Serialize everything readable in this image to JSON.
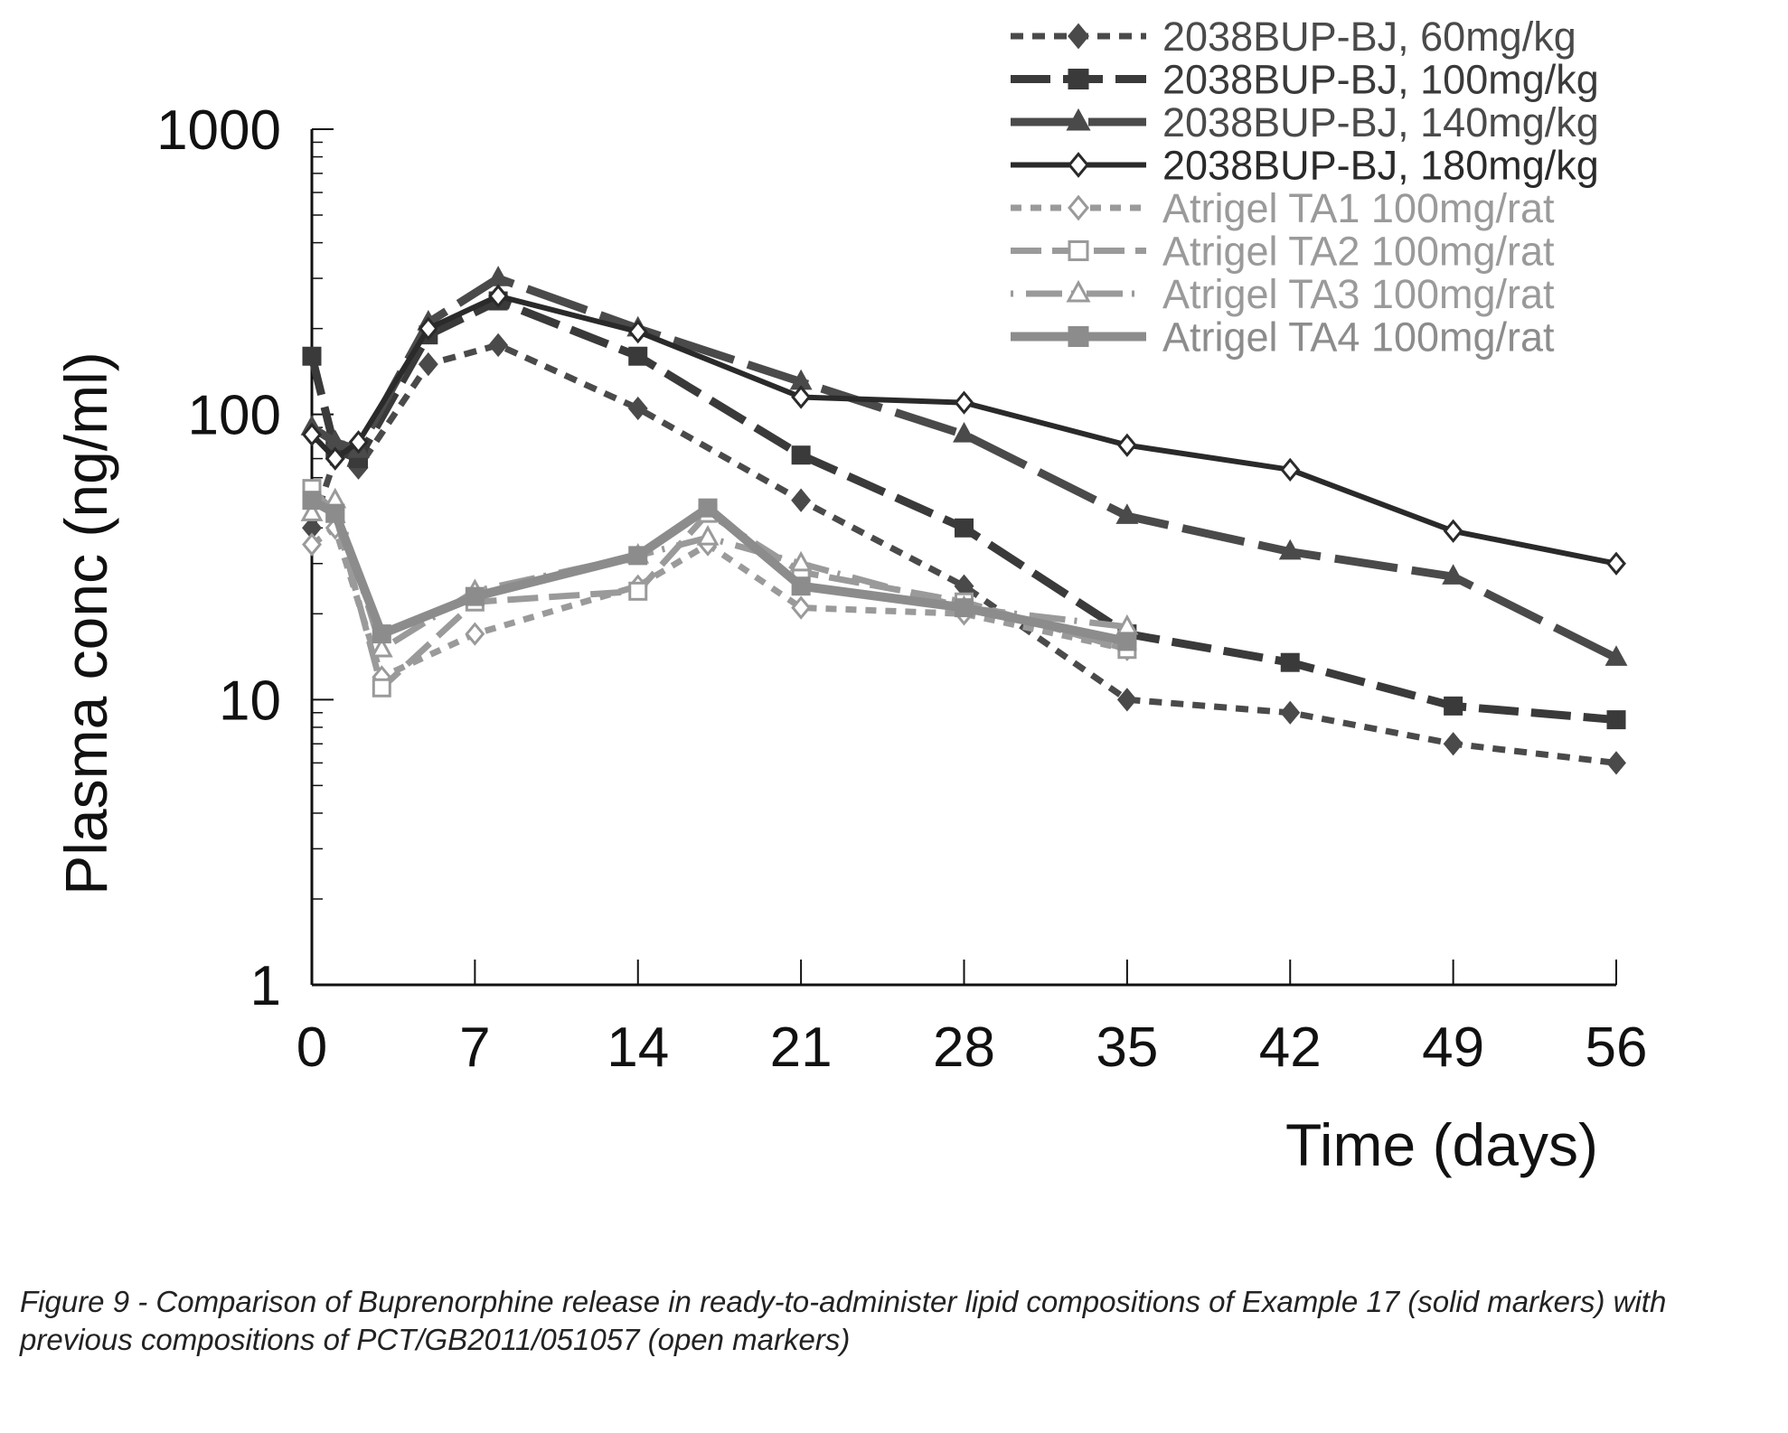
{
  "caption": "Figure 9 - Comparison  of Buprenorphine release in ready-to-administer lipid compositions of Example 17 (solid markers) with previous compositions of PCT/GB2011/051057 (open markers)",
  "chart_data": {
    "type": "line",
    "title": "",
    "xlabel": "Time (days)",
    "ylabel": "Plasma conc (ng/ml)",
    "xlim": [
      0,
      56
    ],
    "ylim": [
      1,
      1000
    ],
    "yscale": "log",
    "xticks": [
      0,
      7,
      14,
      21,
      28,
      35,
      42,
      49,
      56
    ],
    "yticks": [
      1,
      10,
      100,
      1000
    ],
    "grid": false,
    "legend_position": "top-right",
    "series": [
      {
        "name": "2038BUP-BJ, 60mg/kg",
        "color": "#4a4a4a",
        "dash": "14 10",
        "width": 7,
        "marker": "diamond",
        "filled": true,
        "x": [
          0,
          1,
          2,
          5,
          8,
          14,
          21,
          28,
          35,
          42,
          49,
          56
        ],
        "y": [
          40,
          70,
          65,
          150,
          175,
          105,
          50,
          25,
          10,
          9,
          7,
          6
        ]
      },
      {
        "name": "2038BUP-BJ, 100mg/kg",
        "color": "#3a3a3a",
        "dash": "44 14",
        "width": 9,
        "marker": "square",
        "filled": true,
        "x": [
          0,
          1,
          2,
          5,
          8,
          14,
          21,
          28,
          35,
          42,
          49,
          56
        ],
        "y": [
          160,
          75,
          70,
          190,
          250,
          160,
          72,
          40,
          17,
          13.5,
          9.5,
          8.5
        ]
      },
      {
        "name": "2038BUP-BJ, 140mg/kg",
        "color": "#4a4a4a",
        "dash": "70 16",
        "width": 9,
        "marker": "triangle",
        "filled": true,
        "x": [
          0,
          1,
          2,
          5,
          8,
          14,
          21,
          28,
          35,
          42,
          49,
          56
        ],
        "y": [
          90,
          80,
          75,
          210,
          300,
          200,
          130,
          85,
          44,
          33,
          27,
          14
        ]
      },
      {
        "name": "2038BUP-BJ, 180mg/kg",
        "color": "#2a2a2a",
        "dash": "",
        "width": 6,
        "marker": "diamond",
        "filled": false,
        "x": [
          0,
          1,
          2,
          5,
          8,
          14,
          21,
          28,
          35,
          42,
          49,
          56
        ],
        "y": [
          85,
          70,
          80,
          200,
          260,
          195,
          115,
          110,
          78,
          64,
          39,
          30
        ]
      },
      {
        "name": "Atrigel TA1 100mg/rat",
        "color": "#9a9a9a",
        "dash": "12 10",
        "width": 7,
        "marker": "diamond",
        "filled": false,
        "x": [
          0,
          1,
          3,
          7,
          14,
          17,
          21,
          28,
          35
        ],
        "y": [
          35,
          40,
          12,
          17,
          25,
          35,
          21,
          20,
          15
        ]
      },
      {
        "name": "Atrigel TA2 100mg/rat",
        "color": "#9a9a9a",
        "dash": "34 12",
        "width": 7,
        "marker": "square",
        "filled": false,
        "x": [
          0,
          1,
          3,
          7,
          14,
          17,
          21,
          28,
          35
        ],
        "y": [
          55,
          45,
          11,
          22,
          24,
          45,
          28,
          22,
          15
        ]
      },
      {
        "name": "Atrigel TA3 100mg/rat",
        "color": "#9a9a9a",
        "dash": "3 14 40 10",
        "width": 7,
        "marker": "triangle",
        "filled": false,
        "x": [
          0,
          1,
          3,
          7,
          14,
          17,
          21,
          28,
          35
        ],
        "y": [
          45,
          50,
          15,
          24,
          32,
          37,
          30,
          21,
          18
        ]
      },
      {
        "name": "Atrigel TA4 100mg/rat",
        "color": "#8c8c8c",
        "dash": "",
        "width": 10,
        "marker": "square",
        "filled": true,
        "x": [
          0,
          1,
          3,
          7,
          14,
          17,
          21,
          28,
          35
        ],
        "y": [
          50,
          45,
          17,
          23,
          32,
          47,
          25,
          21,
          16
        ]
      }
    ]
  }
}
